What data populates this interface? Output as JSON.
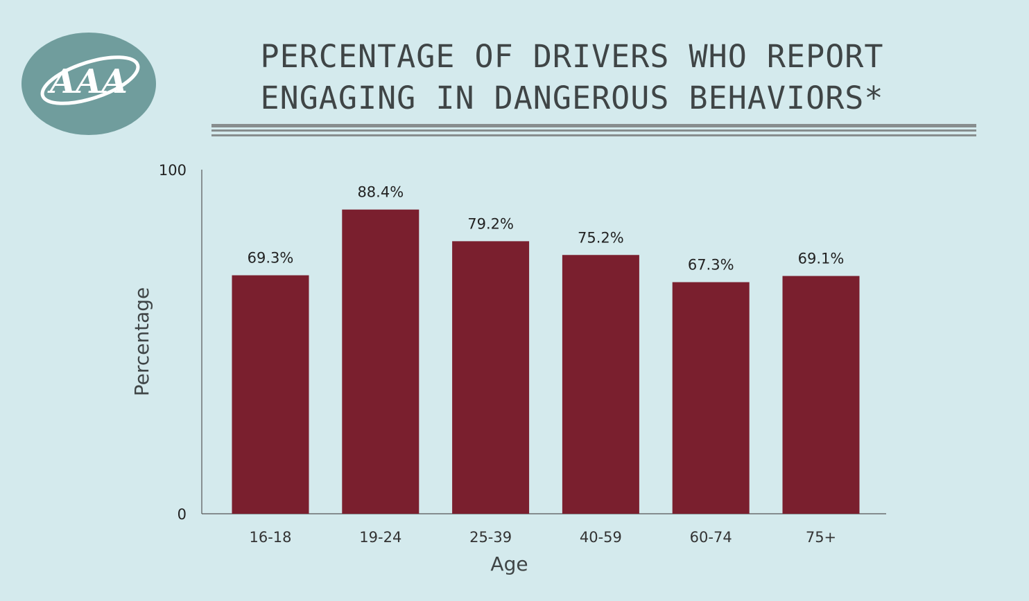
{
  "logo": {
    "label": "AAA",
    "color": "#709d9d"
  },
  "title_lines": [
    "PERCENTAGE OF DRIVERS WHO REPORT",
    "ENGAGING IN DANGEROUS BEHAVIORS*"
  ],
  "colors": {
    "background": "#d4eaed",
    "bar": "#7a1f2e",
    "title": "#3f4546",
    "rule": "#878d8e",
    "axis": "#555555",
    "text": "#222222"
  },
  "chart_data": {
    "type": "bar",
    "title": "PERCENTAGE OF DRIVERS WHO REPORT ENGAGING IN DANGEROUS BEHAVIORS*",
    "xlabel": "Age",
    "ylabel": "Percentage",
    "categories": [
      "16-18",
      "19-24",
      "25-39",
      "40-59",
      "60-74",
      "75+"
    ],
    "values": [
      69.3,
      88.4,
      79.2,
      75.2,
      67.3,
      69.1
    ],
    "value_labels": [
      "69.3%",
      "88.4%",
      "79.2%",
      "75.2%",
      "67.3%",
      "69.1%"
    ],
    "ylim": [
      0,
      100
    ],
    "yticks": [
      "0",
      "100"
    ],
    "grid": false,
    "legend": "none"
  }
}
